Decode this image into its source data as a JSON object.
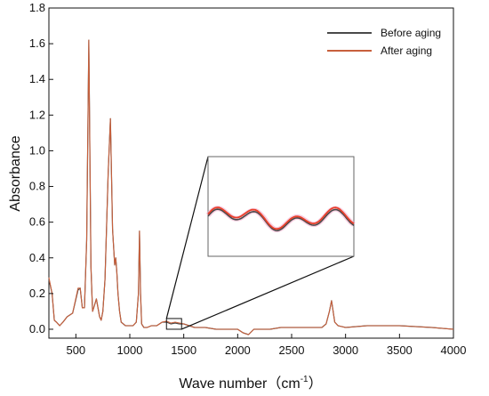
{
  "chart_data": {
    "type": "line",
    "xlabel": "Wave number",
    "xlabel_unit": "cm",
    "xlabel_unit_exp": "-1",
    "ylabel": "Absorbance",
    "xlim": [
      250,
      4000
    ],
    "ylim": [
      -0.05,
      1.8
    ],
    "xticks": [
      500,
      1000,
      1500,
      2000,
      2500,
      3000,
      3500,
      4000
    ],
    "yticks": [
      0.0,
      0.2,
      0.4,
      0.6,
      0.8,
      1.0,
      1.2,
      1.4,
      1.6,
      1.8
    ],
    "ytick_labels": [
      "0.0",
      "0.2",
      "0.4",
      "0.6",
      "0.8",
      "1.0",
      "1.2",
      "1.4",
      "1.6",
      "1.8"
    ],
    "xtick_labels": [
      "500",
      "1000",
      "1500",
      "2000",
      "2500",
      "3000",
      "3500",
      "4000"
    ],
    "legend_position": "top-right",
    "grid": false,
    "series": [
      {
        "name": "Before aging",
        "color": "#4a4a4a",
        "x": [
          250,
          280,
          300,
          320,
          350,
          380,
          420,
          470,
          520,
          540,
          560,
          580,
          600,
          620,
          640,
          655,
          670,
          690,
          720,
          735,
          750,
          770,
          800,
          820,
          840,
          860,
          870,
          880,
          890,
          905,
          920,
          940,
          960,
          980,
          1000,
          1030,
          1060,
          1080,
          1090,
          1100,
          1110,
          1130,
          1160,
          1200,
          1250,
          1300,
          1340,
          1380,
          1420,
          1460,
          1500,
          1600,
          1700,
          1800,
          1900,
          2000,
          2050,
          2100,
          2150,
          2200,
          2300,
          2400,
          2500,
          2600,
          2700,
          2780,
          2820,
          2850,
          2870,
          2880,
          2900,
          2930,
          3000,
          3200,
          3500,
          3800,
          4000
        ],
        "y": [
          0.28,
          0.2,
          0.05,
          0.04,
          0.02,
          0.04,
          0.07,
          0.09,
          0.22,
          0.23,
          0.12,
          0.12,
          0.5,
          1.62,
          0.35,
          0.1,
          0.13,
          0.17,
          0.07,
          0.05,
          0.1,
          0.28,
          0.88,
          1.18,
          0.56,
          0.36,
          0.4,
          0.32,
          0.2,
          0.1,
          0.04,
          0.03,
          0.02,
          0.02,
          0.02,
          0.02,
          0.04,
          0.2,
          0.55,
          0.2,
          0.03,
          0.01,
          0.01,
          0.02,
          0.02,
          0.04,
          0.04,
          0.03,
          0.035,
          0.03,
          0.03,
          0.01,
          0.01,
          0.0,
          0.0,
          0.0,
          -0.02,
          -0.03,
          0.0,
          0.0,
          0.0,
          0.01,
          0.01,
          0.01,
          0.01,
          0.01,
          0.03,
          0.1,
          0.16,
          0.12,
          0.04,
          0.02,
          0.01,
          0.02,
          0.02,
          0.01,
          0.0
        ]
      },
      {
        "name": "After aging",
        "color": "#c8603c",
        "x": [
          250,
          280,
          300,
          320,
          350,
          380,
          420,
          470,
          520,
          540,
          560,
          580,
          600,
          620,
          640,
          655,
          670,
          690,
          720,
          735,
          750,
          770,
          800,
          820,
          840,
          860,
          870,
          880,
          890,
          905,
          920,
          940,
          960,
          980,
          1000,
          1030,
          1060,
          1080,
          1090,
          1100,
          1110,
          1130,
          1160,
          1200,
          1250,
          1300,
          1340,
          1380,
          1420,
          1460,
          1500,
          1600,
          1700,
          1800,
          1900,
          2000,
          2050,
          2100,
          2150,
          2200,
          2300,
          2400,
          2500,
          2600,
          2700,
          2780,
          2820,
          2850,
          2870,
          2880,
          2900,
          2930,
          3000,
          3200,
          3500,
          3800,
          4000
        ],
        "y": [
          0.29,
          0.2,
          0.05,
          0.04,
          0.02,
          0.04,
          0.07,
          0.09,
          0.23,
          0.23,
          0.12,
          0.12,
          0.5,
          1.62,
          0.35,
          0.1,
          0.13,
          0.17,
          0.07,
          0.05,
          0.1,
          0.28,
          0.88,
          1.18,
          0.56,
          0.36,
          0.4,
          0.32,
          0.2,
          0.1,
          0.04,
          0.03,
          0.02,
          0.02,
          0.02,
          0.02,
          0.04,
          0.2,
          0.55,
          0.2,
          0.03,
          0.01,
          0.01,
          0.02,
          0.02,
          0.04,
          0.045,
          0.035,
          0.04,
          0.035,
          0.03,
          0.01,
          0.01,
          0.0,
          0.0,
          0.0,
          -0.02,
          -0.03,
          0.0,
          0.0,
          0.0,
          0.01,
          0.01,
          0.01,
          0.01,
          0.01,
          0.03,
          0.1,
          0.16,
          0.12,
          0.04,
          0.02,
          0.01,
          0.02,
          0.02,
          0.01,
          0.0
        ]
      }
    ],
    "inset": {
      "xrange": [
        1340,
        1480
      ],
      "yrange": [
        0.0,
        0.06
      ]
    }
  }
}
